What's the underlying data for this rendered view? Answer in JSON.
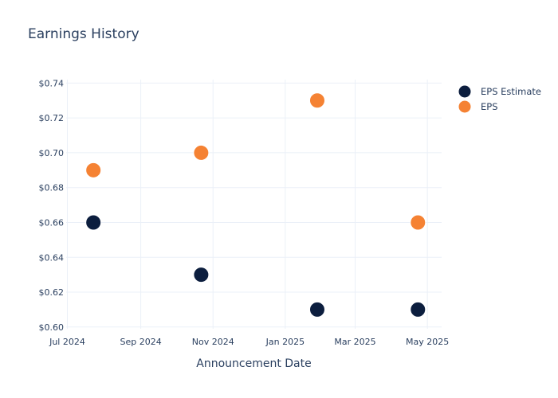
{
  "chart_data": {
    "type": "scatter",
    "title": "Earnings History",
    "xlabel": "Announcement Date",
    "ylabel": "",
    "x_ticks": [
      {
        "date": "2024-07-01",
        "label": "Jul 2024"
      },
      {
        "date": "2024-09-01",
        "label": "Sep 2024"
      },
      {
        "date": "2024-11-01",
        "label": "Nov 2024"
      },
      {
        "date": "2025-01-01",
        "label": "Jan 2025"
      },
      {
        "date": "2025-03-01",
        "label": "Mar 2025"
      },
      {
        "date": "2025-05-01",
        "label": "May 2025"
      }
    ],
    "xlim": [
      "2024-06-30",
      "2025-05-13"
    ],
    "y_ticks": [
      0.6,
      0.62,
      0.64,
      0.66,
      0.68,
      0.7,
      0.72,
      0.74
    ],
    "y_tick_labels": [
      "$0.60",
      "$0.62",
      "$0.64",
      "$0.66",
      "$0.68",
      "$0.70",
      "$0.72",
      "$0.74"
    ],
    "ylim": [
      0.599,
      0.742
    ],
    "grid": true,
    "legend_position": "top-right",
    "series": [
      {
        "name": "EPS Estimate",
        "color": "#0c1e3e",
        "points": [
          {
            "x": "2024-07-23",
            "y": 0.66
          },
          {
            "x": "2024-10-22",
            "y": 0.63
          },
          {
            "x": "2025-01-28",
            "y": 0.61
          },
          {
            "x": "2025-04-23",
            "y": 0.61
          }
        ]
      },
      {
        "name": "EPS",
        "color": "#f58233",
        "points": [
          {
            "x": "2024-07-23",
            "y": 0.69
          },
          {
            "x": "2024-10-22",
            "y": 0.7
          },
          {
            "x": "2025-01-28",
            "y": 0.73
          },
          {
            "x": "2025-04-23",
            "y": 0.66
          }
        ]
      }
    ]
  }
}
